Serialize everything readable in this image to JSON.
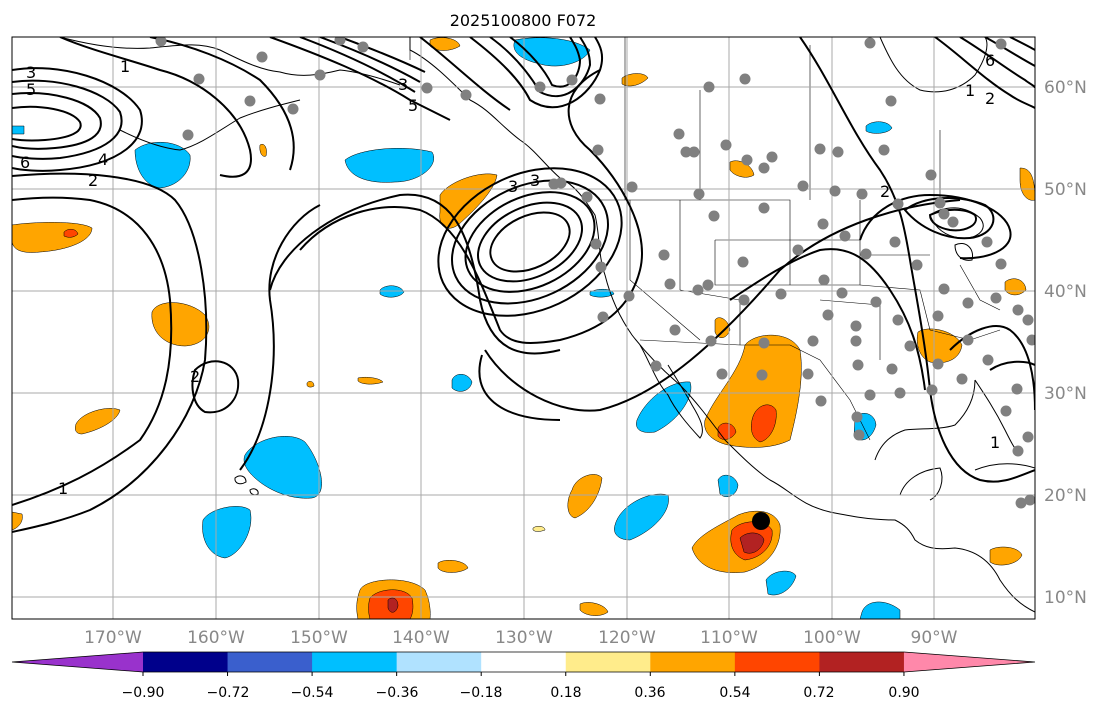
{
  "title": "2025100800 F072",
  "longitude_labels": [
    "170°W",
    "160°W",
    "150°W",
    "140°W",
    "130°W",
    "120°W",
    "110°W",
    "100°W",
    "90°W"
  ],
  "latitude_labels": [
    "60°N",
    "50°N",
    "40°N",
    "30°N",
    "20°N",
    "10°N"
  ],
  "contour_labels": [
    "3",
    "5",
    "6",
    "4",
    "2",
    "1",
    "3",
    "5",
    "3",
    "3",
    "2",
    "2",
    "1",
    "6",
    "1",
    "1",
    "2"
  ],
  "colorbar": {
    "ticks": [
      "−0.90",
      "−0.72",
      "−0.54",
      "−0.36",
      "−0.18",
      "0.18",
      "0.36",
      "0.54",
      "0.72",
      "0.90"
    ],
    "colors": [
      "#9932CC",
      "#00008B",
      "#3A5FCD",
      "#00BFFF",
      "#B0E2FF",
      "#FFFFFF",
      "#FFEC8B",
      "#FFA500",
      "#FF4500",
      "#B22222",
      "#FF88AA"
    ]
  },
  "colors": {
    "grid": "#a8a8a8",
    "tick_label": "#888888",
    "station": "#808080",
    "contour": "#000000",
    "coast": "#000000"
  }
}
